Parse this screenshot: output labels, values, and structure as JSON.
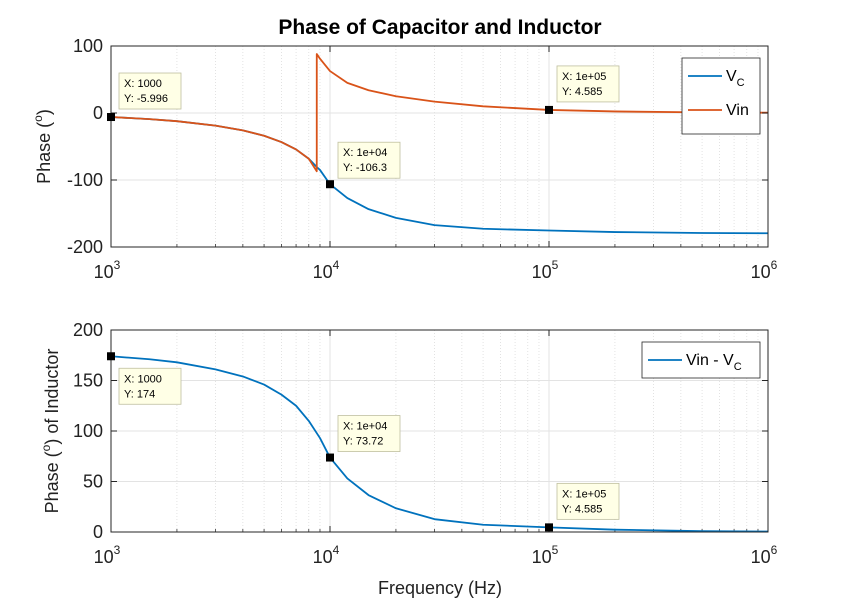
{
  "figure": {
    "title": "Phase of Capacitor and Inductor",
    "xlabel": "Frequency (Hz)"
  },
  "colors": {
    "blue": "#0072BD",
    "orange": "#D95319"
  },
  "chart_data": [
    {
      "type": "line",
      "xscale": "log",
      "xlim": [
        1000,
        1000000
      ],
      "ylim": [
        -200,
        100
      ],
      "xticks": [
        1000,
        10000,
        100000,
        1000000
      ],
      "xtick_labels": [
        [
          "10",
          "3"
        ],
        [
          "10",
          "4"
        ],
        [
          "10",
          "5"
        ],
        [
          "10",
          "6"
        ]
      ],
      "yticks": [
        -200,
        -100,
        0,
        100
      ],
      "ylabel": {
        "main": "Phase (",
        "sup": "o",
        "end": ")"
      },
      "grid": true,
      "legend_position": "top-right",
      "series": [
        {
          "name": "VC",
          "legend_main": "V",
          "legend_sub": "C",
          "color": "#0072BD",
          "x": [
            1000,
            1500,
            2000,
            3000,
            4000,
            5000,
            6000,
            7000,
            8000,
            8700,
            9000,
            10000,
            12000,
            15000,
            20000,
            30000,
            50000,
            100000,
            200000,
            500000,
            1000000
          ],
          "y": [
            -5.996,
            -9.1,
            -12.2,
            -18.8,
            -26.0,
            -34.0,
            -43.4,
            -54.4,
            -68.3,
            -80.6,
            -85.0,
            -106.3,
            -127.0,
            -143.5,
            -156.5,
            -167.3,
            -172.8,
            -175.4,
            -177.7,
            -179.1,
            -179.5
          ]
        },
        {
          "name": "Vin",
          "legend_main": "Vin",
          "color": "#D95319",
          "x": [
            1000,
            1500,
            2000,
            3000,
            4000,
            5000,
            6000,
            7000,
            8000,
            8700,
            8701,
            9000,
            10000,
            12000,
            15000,
            20000,
            30000,
            50000,
            100000,
            200000,
            500000,
            1000000
          ],
          "y": [
            -5.996,
            -9.1,
            -12.2,
            -18.8,
            -26.0,
            -34.0,
            -43.4,
            -54.4,
            -68.3,
            -87.0,
            88.0,
            81.0,
            62.6,
            45.0,
            34.0,
            25.0,
            17.0,
            10.0,
            4.585,
            2.3,
            0.9,
            0.45
          ]
        }
      ],
      "datatips": [
        {
          "x": 1000,
          "y": -5.996,
          "lines": [
            "X: 1000",
            "Y: -5.996"
          ]
        },
        {
          "x": 10000,
          "y": -106.3,
          "lines": [
            "X: 1e+04",
            "Y: -106.3"
          ]
        },
        {
          "x": 100000,
          "y": 4.585,
          "lines": [
            "X: 1e+05",
            "Y: 4.585"
          ]
        }
      ]
    },
    {
      "type": "line",
      "xscale": "log",
      "xlim": [
        1000,
        1000000
      ],
      "ylim": [
        0,
        200
      ],
      "xticks": [
        1000,
        10000,
        100000,
        1000000
      ],
      "xtick_labels": [
        [
          "10",
          "3"
        ],
        [
          "10",
          "4"
        ],
        [
          "10",
          "5"
        ],
        [
          "10",
          "6"
        ]
      ],
      "yticks": [
        0,
        50,
        100,
        150,
        200
      ],
      "ylabel": {
        "main": "Phase (",
        "sup": "o",
        "end": ") of Inductor"
      },
      "grid": true,
      "legend_position": "top-right",
      "series": [
        {
          "name": "Vin - VC",
          "legend_main": "Vin - V",
          "legend_sub": "C",
          "color": "#0072BD",
          "x": [
            1000,
            1500,
            2000,
            3000,
            4000,
            5000,
            6000,
            7000,
            8000,
            9000,
            10000,
            12000,
            15000,
            20000,
            30000,
            50000,
            100000,
            200000,
            500000,
            1000000
          ],
          "y": [
            174,
            171,
            168,
            161,
            154,
            146,
            136,
            125,
            110,
            93,
            73.72,
            53,
            36.5,
            23.5,
            12.7,
            7.2,
            4.585,
            2.3,
            0.9,
            0.45
          ]
        }
      ],
      "datatips": [
        {
          "x": 1000,
          "y": 174,
          "lines": [
            "X: 1000",
            "Y: 174"
          ]
        },
        {
          "x": 10000,
          "y": 73.72,
          "lines": [
            "X: 1e+04",
            "Y: 73.72"
          ]
        },
        {
          "x": 100000,
          "y": 4.585,
          "lines": [
            "X: 1e+05",
            "Y: 4.585"
          ]
        }
      ]
    }
  ]
}
